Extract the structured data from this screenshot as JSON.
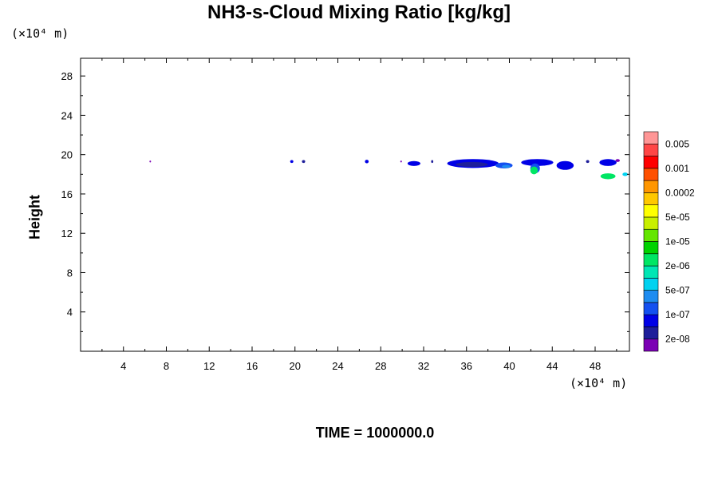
{
  "chart_data": {
    "type": "heatmap",
    "title": "NH3-s-Cloud Mixing Ratio [kg/kg]",
    "ylabel": "Height",
    "xlabel": "",
    "x_unit": "(×10⁴ m)",
    "y_unit": "(×10⁴ m)",
    "time_label": "TIME = 1000000.0",
    "xlim": [
      0,
      51.2
    ],
    "ylim": [
      0,
      29.8
    ],
    "x_ticks": [
      4,
      8,
      12,
      16,
      20,
      24,
      28,
      32,
      36,
      40,
      44,
      48
    ],
    "y_ticks": [
      4,
      8,
      12,
      16,
      20,
      24,
      28
    ],
    "colorbar": {
      "colors": [
        "#7b00b4",
        "#1e1e9a",
        "#0000e6",
        "#1450f0",
        "#1e8cf0",
        "#00d2f0",
        "#00e6b4",
        "#00e664",
        "#00d200",
        "#64e600",
        "#c8f000",
        "#ffff00",
        "#ffc800",
        "#ff9600",
        "#ff5000",
        "#ff0000",
        "#ff4646",
        "#ff9696"
      ],
      "labels": [
        "2e-08",
        "1e-07",
        "5e-07",
        "2e-06",
        "1e-05",
        "5e-05",
        "0.0002",
        "0.001",
        "0.005"
      ]
    },
    "features": [
      {
        "x": 6.5,
        "y": 19.3,
        "w": 0.15,
        "h": 0.2,
        "level": 0
      },
      {
        "x": 19.7,
        "y": 19.3,
        "w": 0.3,
        "h": 0.3,
        "level": 2
      },
      {
        "x": 20.8,
        "y": 19.3,
        "w": 0.3,
        "h": 0.3,
        "level": 1
      },
      {
        "x": 26.7,
        "y": 19.3,
        "w": 0.35,
        "h": 0.35,
        "level": 2
      },
      {
        "x": 29.9,
        "y": 19.3,
        "w": 0.15,
        "h": 0.2,
        "level": 0
      },
      {
        "x": 31.1,
        "y": 19.1,
        "w": 1.2,
        "h": 0.5,
        "level": 2
      },
      {
        "x": 32.8,
        "y": 19.3,
        "w": 0.2,
        "h": 0.3,
        "level": 1
      },
      {
        "x": 36.6,
        "y": 19.1,
        "w": 4.8,
        "h": 0.9,
        "level": 2
      },
      {
        "x": 36.5,
        "y": 19.0,
        "w": 3.0,
        "h": 0.5,
        "level": 1
      },
      {
        "x": 39.5,
        "y": 18.9,
        "w": 1.6,
        "h": 0.6,
        "level": 3
      },
      {
        "x": 39.7,
        "y": 18.8,
        "w": 0.8,
        "h": 0.3,
        "level": 4
      },
      {
        "x": 42.6,
        "y": 19.2,
        "w": 3.0,
        "h": 0.7,
        "level": 2
      },
      {
        "x": 42.4,
        "y": 18.6,
        "w": 0.9,
        "h": 1.0,
        "level": 3
      },
      {
        "x": 42.3,
        "y": 18.4,
        "w": 0.7,
        "h": 0.8,
        "level": 7
      },
      {
        "x": 45.2,
        "y": 18.9,
        "w": 1.6,
        "h": 0.9,
        "level": 2
      },
      {
        "x": 47.3,
        "y": 19.3,
        "w": 0.3,
        "h": 0.3,
        "level": 1
      },
      {
        "x": 49.2,
        "y": 19.2,
        "w": 1.6,
        "h": 0.7,
        "level": 2
      },
      {
        "x": 50.1,
        "y": 19.4,
        "w": 0.4,
        "h": 0.3,
        "level": 0
      },
      {
        "x": 49.2,
        "y": 17.8,
        "w": 1.4,
        "h": 0.6,
        "level": 7
      },
      {
        "x": 50.8,
        "y": 18.0,
        "w": 0.5,
        "h": 0.35,
        "level": 5
      }
    ]
  }
}
